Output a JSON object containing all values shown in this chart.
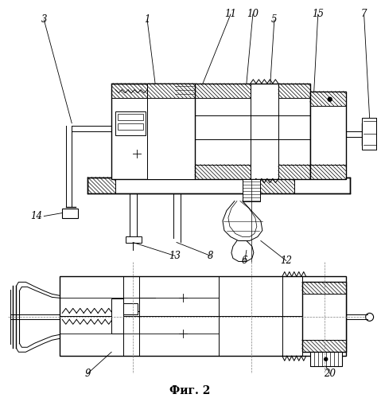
{
  "bg_color": "#ffffff",
  "line_color": "#000000",
  "title": "Фиг. 2",
  "title_fontsize": 10
}
